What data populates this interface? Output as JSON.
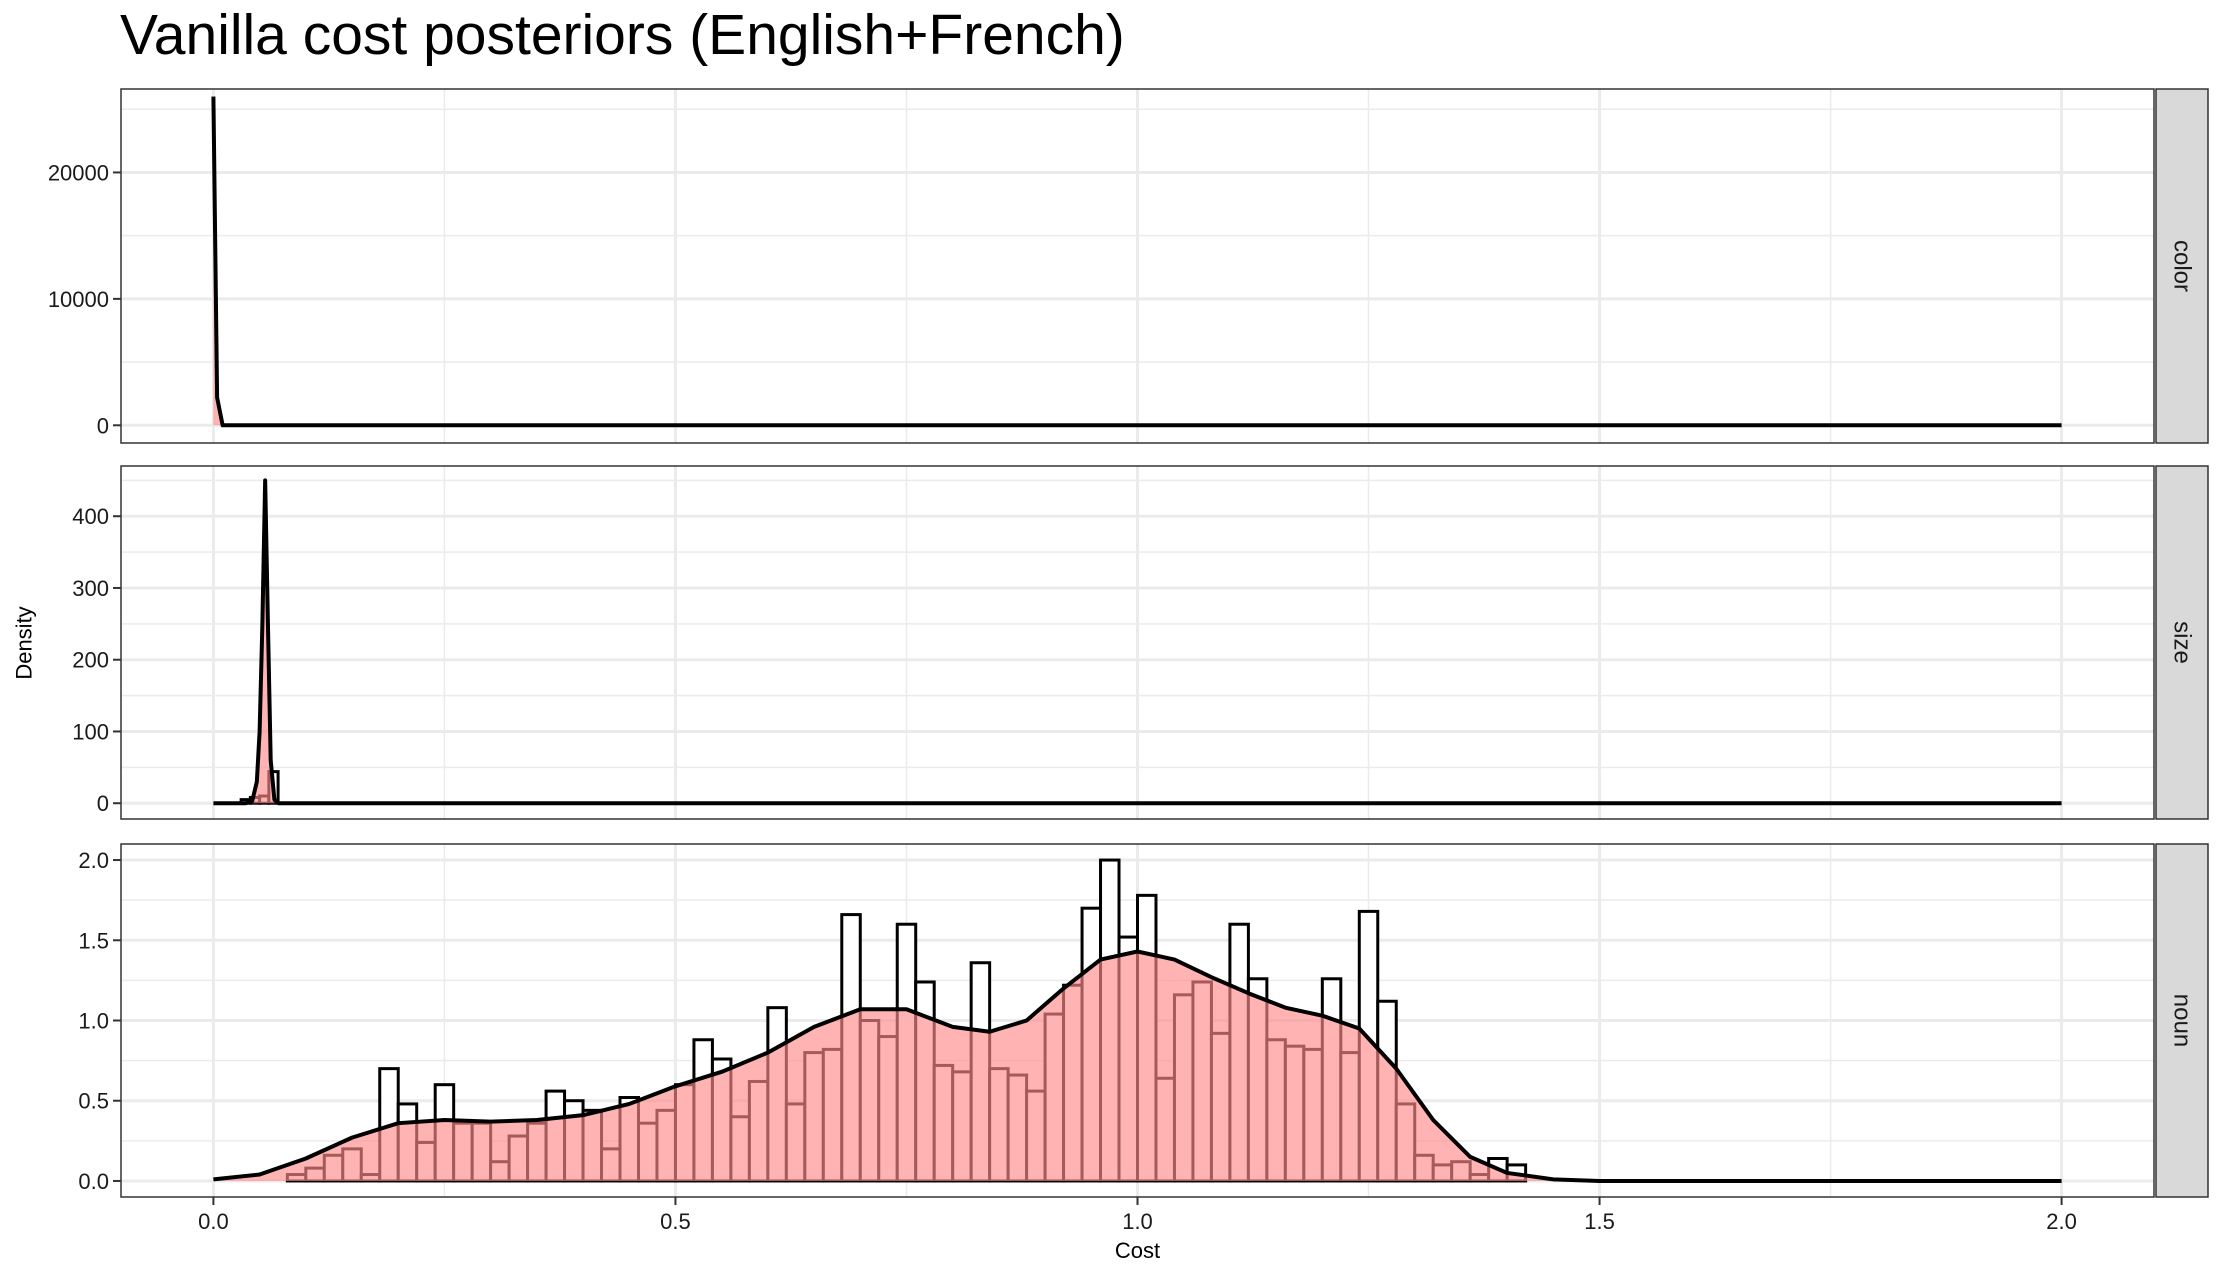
{
  "chart_data": {
    "type": "faceted_histogram_density",
    "title": "Vanilla cost posteriors (English+French)",
    "xlabel": "Cost",
    "ylabel": "Density",
    "xlim": [
      -0.1,
      2.1
    ],
    "x_ticks": [
      0.0,
      0.5,
      1.0,
      1.5,
      2.0
    ],
    "x_tick_labels": [
      "0.0",
      "0.5",
      "1.0",
      "1.5",
      "2.0"
    ],
    "grid": true,
    "colors": {
      "density_fill": "#ff8a8a",
      "outline": "#000000",
      "panel_border": "#333333",
      "grid": "#ebebeb",
      "strip_bg": "#d9d9d9"
    },
    "facets": [
      {
        "label": "color",
        "ylim": [
          -1400,
          26600
        ],
        "y_ticks": [
          0,
          10000,
          20000
        ],
        "y_tick_labels": [
          "0",
          "10000",
          "20000"
        ],
        "histogram": {
          "bin_width": 0.02,
          "bins": []
        },
        "density": [
          [
            0.0,
            26000
          ],
          [
            0.004,
            2200
          ],
          [
            0.01,
            0
          ],
          [
            2.0,
            0
          ]
        ]
      },
      {
        "label": "size",
        "ylim": [
          -22,
          470
        ],
        "y_ticks": [
          0,
          100,
          200,
          300,
          400
        ],
        "y_tick_labels": [
          "0",
          "100",
          "200",
          "300",
          "400"
        ],
        "histogram": {
          "bin_width": 0.01,
          "bins": [
            [
              0.03,
              5
            ],
            [
              0.04,
              8
            ],
            [
              0.05,
              10
            ],
            [
              0.06,
              44
            ]
          ]
        },
        "density": [
          [
            0.0,
            0
          ],
          [
            0.035,
            0
          ],
          [
            0.042,
            3
          ],
          [
            0.047,
            30
          ],
          [
            0.05,
            100
          ],
          [
            0.053,
            250
          ],
          [
            0.056,
            450
          ],
          [
            0.059,
            250
          ],
          [
            0.062,
            60
          ],
          [
            0.066,
            5
          ],
          [
            0.07,
            0
          ],
          [
            2.0,
            0
          ]
        ]
      },
      {
        "label": "noun",
        "ylim": [
          -0.1,
          2.1
        ],
        "y_ticks": [
          0.0,
          0.5,
          1.0,
          1.5,
          2.0
        ],
        "y_tick_labels": [
          "0.0",
          "0.5",
          "1.0",
          "1.5",
          "2.0"
        ],
        "histogram": {
          "bin_width": 0.02,
          "bins": [
            [
              0.08,
              0.04
            ],
            [
              0.1,
              0.08
            ],
            [
              0.12,
              0.16
            ],
            [
              0.14,
              0.2
            ],
            [
              0.16,
              0.04
            ],
            [
              0.18,
              0.7
            ],
            [
              0.2,
              0.48
            ],
            [
              0.22,
              0.24
            ],
            [
              0.24,
              0.6
            ],
            [
              0.26,
              0.36
            ],
            [
              0.28,
              0.36
            ],
            [
              0.3,
              0.12
            ],
            [
              0.32,
              0.28
            ],
            [
              0.34,
              0.36
            ],
            [
              0.36,
              0.56
            ],
            [
              0.38,
              0.5
            ],
            [
              0.4,
              0.44
            ],
            [
              0.42,
              0.2
            ],
            [
              0.44,
              0.52
            ],
            [
              0.46,
              0.36
            ],
            [
              0.48,
              0.44
            ],
            [
              0.5,
              0.6
            ],
            [
              0.52,
              0.88
            ],
            [
              0.54,
              0.76
            ],
            [
              0.56,
              0.4
            ],
            [
              0.58,
              0.62
            ],
            [
              0.6,
              1.08
            ],
            [
              0.62,
              0.48
            ],
            [
              0.64,
              0.8
            ],
            [
              0.66,
              0.82
            ],
            [
              0.68,
              1.66
            ],
            [
              0.7,
              1.0
            ],
            [
              0.72,
              0.9
            ],
            [
              0.74,
              1.6
            ],
            [
              0.76,
              1.24
            ],
            [
              0.78,
              0.72
            ],
            [
              0.8,
              0.68
            ],
            [
              0.82,
              1.36
            ],
            [
              0.84,
              0.7
            ],
            [
              0.86,
              0.66
            ],
            [
              0.88,
              0.56
            ],
            [
              0.9,
              1.04
            ],
            [
              0.92,
              1.22
            ],
            [
              0.94,
              1.7
            ],
            [
              0.96,
              2.0
            ],
            [
              0.98,
              1.52
            ],
            [
              1.0,
              1.78
            ],
            [
              1.02,
              0.64
            ],
            [
              1.04,
              1.16
            ],
            [
              1.06,
              1.24
            ],
            [
              1.08,
              0.92
            ],
            [
              1.1,
              1.6
            ],
            [
              1.12,
              1.26
            ],
            [
              1.14,
              0.88
            ],
            [
              1.16,
              0.84
            ],
            [
              1.18,
              0.82
            ],
            [
              1.2,
              1.26
            ],
            [
              1.22,
              0.8
            ],
            [
              1.24,
              1.68
            ],
            [
              1.26,
              1.12
            ],
            [
              1.28,
              0.48
            ],
            [
              1.3,
              0.16
            ],
            [
              1.32,
              0.1
            ],
            [
              1.34,
              0.12
            ],
            [
              1.36,
              0.04
            ],
            [
              1.38,
              0.14
            ],
            [
              1.4,
              0.1
            ]
          ]
        },
        "density": [
          [
            0.0,
            0.01
          ],
          [
            0.05,
            0.04
          ],
          [
            0.1,
            0.14
          ],
          [
            0.15,
            0.27
          ],
          [
            0.2,
            0.36
          ],
          [
            0.25,
            0.38
          ],
          [
            0.3,
            0.37
          ],
          [
            0.35,
            0.38
          ],
          [
            0.4,
            0.41
          ],
          [
            0.45,
            0.48
          ],
          [
            0.5,
            0.59
          ],
          [
            0.55,
            0.68
          ],
          [
            0.6,
            0.8
          ],
          [
            0.65,
            0.96
          ],
          [
            0.7,
            1.07
          ],
          [
            0.75,
            1.07
          ],
          [
            0.8,
            0.96
          ],
          [
            0.84,
            0.93
          ],
          [
            0.88,
            1.0
          ],
          [
            0.92,
            1.2
          ],
          [
            0.96,
            1.38
          ],
          [
            1.0,
            1.43
          ],
          [
            1.04,
            1.38
          ],
          [
            1.08,
            1.27
          ],
          [
            1.12,
            1.17
          ],
          [
            1.16,
            1.08
          ],
          [
            1.2,
            1.03
          ],
          [
            1.24,
            0.95
          ],
          [
            1.28,
            0.7
          ],
          [
            1.32,
            0.38
          ],
          [
            1.36,
            0.15
          ],
          [
            1.4,
            0.05
          ],
          [
            1.45,
            0.01
          ],
          [
            1.5,
            0.0
          ],
          [
            2.0,
            0.0
          ]
        ]
      }
    ]
  }
}
